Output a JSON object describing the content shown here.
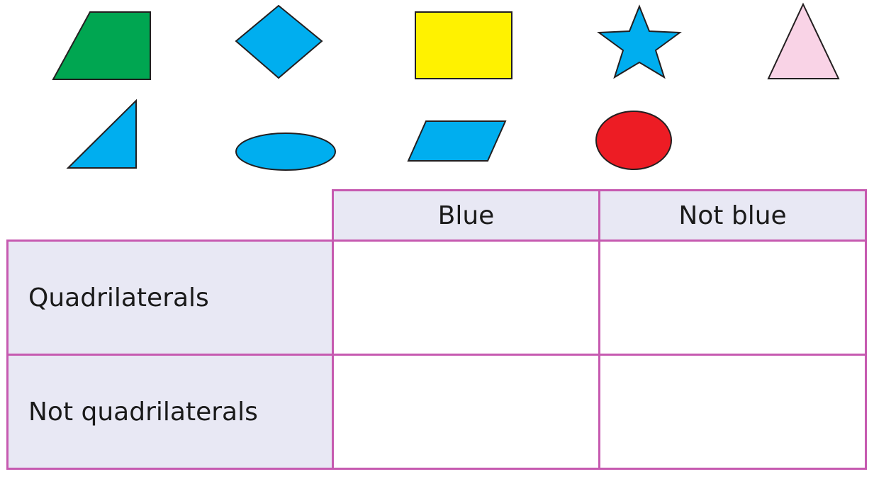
{
  "shapes": [
    {
      "name": "trapezium-shape",
      "kind": "trapezium",
      "color": "#00a651"
    },
    {
      "name": "rhombus-shape",
      "kind": "rhombus",
      "color": "#00aeef"
    },
    {
      "name": "rectangle-shape",
      "kind": "rectangle",
      "color": "#fff200"
    },
    {
      "name": "star-shape",
      "kind": "star",
      "color": "#00aeef"
    },
    {
      "name": "isosceles-triangle-shape",
      "kind": "triangle",
      "color": "#f9d3e6"
    },
    {
      "name": "right-triangle-shape",
      "kind": "right-triangle",
      "color": "#00aeef"
    },
    {
      "name": "ellipse-shape",
      "kind": "ellipse",
      "color": "#00aeef"
    },
    {
      "name": "parallelogram-shape",
      "kind": "parallelogram",
      "color": "#00aeef"
    },
    {
      "name": "circle-shape",
      "kind": "circle",
      "color": "#ed1c24"
    }
  ],
  "table": {
    "columns": [
      "Blue",
      "Not blue"
    ],
    "rows": [
      "Quadrilaterals",
      "Not quadrilaterals"
    ],
    "border_color": "#c65ab0",
    "header_fill": "#e8e8f4"
  }
}
